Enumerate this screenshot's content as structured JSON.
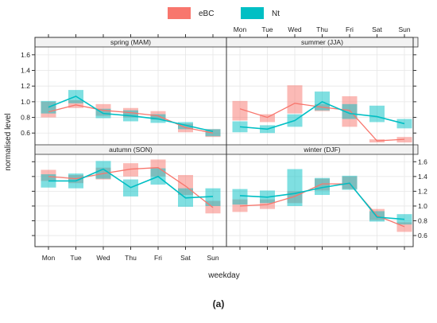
{
  "chart_data": {
    "type": "line",
    "legend": {
      "position": "top",
      "entries": [
        {
          "name": "eBC",
          "color": "#f8766d"
        },
        {
          "name": "Nt",
          "color": "#00bfc4"
        }
      ]
    },
    "colors": {
      "eBC": "#f8766d",
      "Nt": "#00bfc4",
      "strip": "#f2f2f2",
      "grid": "#e6e6e6"
    },
    "categories": [
      "Mon",
      "Tue",
      "Wed",
      "Thu",
      "Fri",
      "Sat",
      "Sun"
    ],
    "xlabel": "weekday",
    "ylabel": "normalised level",
    "yticks": [
      "0.6",
      "0.8",
      "1.0",
      "1.2",
      "1.4",
      "1.6"
    ],
    "ylim": [
      0.45,
      1.7
    ],
    "grid": true,
    "caption": "(a)",
    "panels": [
      {
        "title": "spring (MAM)",
        "series": [
          {
            "name": "eBC",
            "values": [
              0.87,
              0.96,
              0.89,
              0.86,
              0.82,
              0.67,
              0.6
            ],
            "lower": [
              0.8,
              0.92,
              0.82,
              0.8,
              0.77,
              0.61,
              0.55
            ],
            "upper": [
              1.0,
              1.02,
              0.97,
              0.92,
              0.88,
              0.72,
              0.65
            ]
          },
          {
            "name": "Nt",
            "values": [
              0.93,
              1.07,
              0.85,
              0.82,
              0.78,
              0.7,
              0.62
            ],
            "lower": [
              0.85,
              0.98,
              0.79,
              0.75,
              0.73,
              0.65,
              0.56
            ],
            "upper": [
              1.01,
              1.15,
              0.91,
              0.89,
              0.84,
              0.74,
              0.65
            ]
          }
        ]
      },
      {
        "title": "summer (JJA)",
        "series": [
          {
            "name": "eBC",
            "values": [
              0.91,
              0.8,
              0.98,
              0.93,
              0.89,
              0.5,
              0.52
            ],
            "lower": [
              0.76,
              0.74,
              0.85,
              0.88,
              0.68,
              0.48,
              0.48
            ],
            "upper": [
              1.01,
              0.84,
              1.21,
              0.97,
              1.07,
              0.52,
              0.55
            ]
          },
          {
            "name": "Nt",
            "values": [
              0.68,
              0.65,
              0.76,
              1.0,
              0.85,
              0.81,
              0.72
            ],
            "lower": [
              0.61,
              0.6,
              0.68,
              0.89,
              0.78,
              0.74,
              0.66
            ],
            "upper": [
              0.75,
              0.7,
              0.84,
              1.13,
              0.97,
              0.95,
              0.78
            ]
          }
        ]
      },
      {
        "title": "autumn (SON)",
        "series": [
          {
            "name": "eBC",
            "values": [
              1.4,
              1.37,
              1.44,
              1.5,
              1.52,
              1.27,
              0.98
            ],
            "lower": [
              1.34,
              1.31,
              1.36,
              1.4,
              1.4,
              1.15,
              0.9
            ],
            "upper": [
              1.49,
              1.42,
              1.52,
              1.58,
              1.63,
              1.42,
              1.07
            ]
          },
          {
            "name": "Nt",
            "values": [
              1.34,
              1.34,
              1.5,
              1.25,
              1.4,
              1.11,
              1.13
            ],
            "lower": [
              1.25,
              1.24,
              1.37,
              1.13,
              1.29,
              0.99,
              1.0
            ],
            "upper": [
              1.43,
              1.44,
              1.61,
              1.36,
              1.51,
              1.24,
              1.24
            ]
          }
        ]
      },
      {
        "title": "winter (DJF)",
        "series": [
          {
            "name": "eBC",
            "values": [
              1.0,
              1.02,
              1.13,
              1.3,
              1.3,
              0.87,
              0.72
            ],
            "lower": [
              0.92,
              0.96,
              1.04,
              1.21,
              1.23,
              0.81,
              0.65
            ],
            "upper": [
              1.09,
              1.09,
              1.2,
              1.37,
              1.4,
              0.96,
              0.78
            ]
          },
          {
            "name": "Nt",
            "values": [
              1.14,
              1.12,
              1.17,
              1.25,
              1.31,
              0.85,
              0.82
            ],
            "lower": [
              1.02,
              1.04,
              1.0,
              1.15,
              1.22,
              0.79,
              0.75
            ],
            "upper": [
              1.23,
              1.21,
              1.5,
              1.38,
              1.41,
              0.93,
              0.89
            ]
          }
        ]
      }
    ]
  }
}
